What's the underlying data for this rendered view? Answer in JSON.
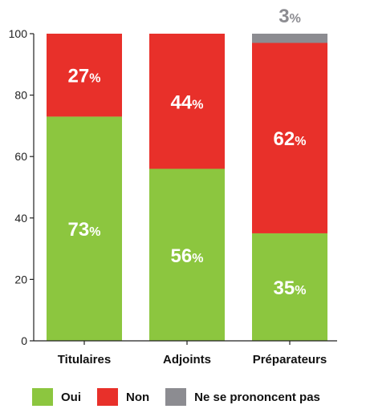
{
  "chart_data": {
    "type": "bar",
    "stacked": true,
    "categories": [
      "Titulaires",
      "Adjoints",
      "Préparateurs"
    ],
    "series": [
      {
        "name": "Oui",
        "values": [
          73,
          56,
          35
        ],
        "color": "#8cc63f",
        "label_color": "#ffffff"
      },
      {
        "name": "Non",
        "values": [
          27,
          44,
          62
        ],
        "color": "#e8302a",
        "label_color": "#ffffff"
      },
      {
        "name": "Ne se prononcent pas",
        "values": [
          0,
          0,
          3
        ],
        "color": "#8c8c91",
        "label_color": "#8c8c91"
      }
    ],
    "data_labels": [
      [
        "73",
        "27",
        ""
      ],
      [
        "56",
        "44",
        ""
      ],
      [
        "35",
        "62",
        "3"
      ]
    ],
    "percent_sign": "%",
    "yticks": [
      "0",
      "20",
      "40",
      "60",
      "80",
      "100"
    ],
    "ylim": [
      0,
      100
    ],
    "xlabel": "",
    "ylabel": "",
    "title": "",
    "grid": false,
    "legend_position": "bottom"
  }
}
